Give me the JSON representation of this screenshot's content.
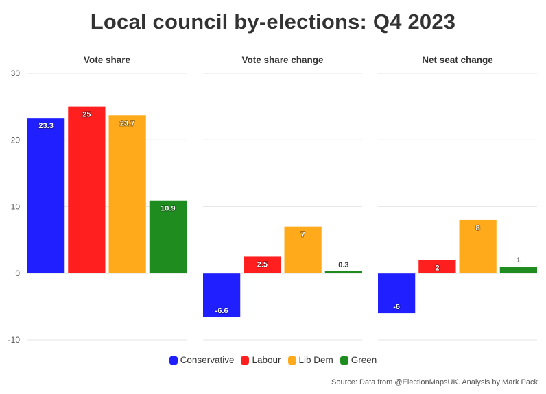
{
  "title": "Local council by-elections: Q4 2023",
  "source": "Source: Data from @ElectionMapsUK. Analysis by Mark Pack",
  "colors": {
    "Conservative": "#1f1fff",
    "Labour": "#ff1f1f",
    "Lib Dem": "#ffaa1a",
    "Green": "#1f8c1f"
  },
  "legend": [
    "Conservative",
    "Labour",
    "Lib Dem",
    "Green"
  ],
  "chart_data": [
    {
      "type": "bar",
      "title": "Vote share",
      "categories": [
        "Conservative",
        "Labour",
        "Lib Dem",
        "Green"
      ],
      "values": [
        23.3,
        25,
        23.7,
        10.9
      ],
      "labels": [
        "23.3",
        "25",
        "23.7",
        "10.9"
      ],
      "ylim": [
        -10,
        30
      ],
      "yticks": [
        "30",
        "20",
        "10",
        "0",
        "-10"
      ],
      "grid": true
    },
    {
      "type": "bar",
      "title": "Vote share change",
      "categories": [
        "Conservative",
        "Labour",
        "Lib Dem",
        "Green"
      ],
      "values": [
        -6.6,
        2.5,
        7,
        0.3
      ],
      "labels": [
        "-6.6",
        "2.5",
        "7",
        "0.3"
      ],
      "ylim": [
        -10,
        30
      ],
      "grid": true
    },
    {
      "type": "bar",
      "title": "Net seat change",
      "categories": [
        "Conservative",
        "Labour",
        "Lib Dem",
        "Green"
      ],
      "values": [
        -6,
        2,
        8,
        1
      ],
      "labels": [
        "-6",
        "2",
        "8",
        "1"
      ],
      "ylim": [
        -10,
        30
      ],
      "grid": true
    }
  ]
}
